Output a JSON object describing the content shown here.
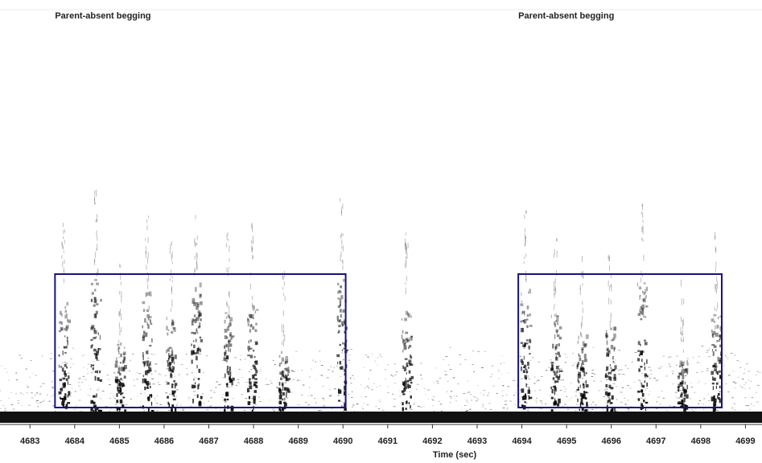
{
  "chart_data": {
    "type": "spectrogram",
    "xlabel": "Time (sec)",
    "xlim": [
      4682.33,
      4699.37
    ],
    "xticks": [
      4683,
      4684,
      4685,
      4686,
      4687,
      4688,
      4689,
      4690,
      4691,
      4692,
      4693,
      4694,
      4695,
      4696,
      4697,
      4698,
      4699
    ],
    "annotations": [
      {
        "text": "Parent-absent begging",
        "x": [
          4683.56,
          4690.06
        ]
      },
      {
        "text": "Parent-absent begging",
        "x": [
          4693.92,
          4698.47
        ]
      }
    ],
    "box_color": "#1a1180",
    "calls": [
      4683.74,
      4684.46,
      4685.0,
      4685.61,
      4686.15,
      4686.7,
      4687.42,
      4687.95,
      4688.66,
      4689.96,
      4691.41,
      4694.06,
      4694.74,
      4695.33,
      4695.96,
      4696.68,
      4697.58,
      4698.33
    ]
  }
}
